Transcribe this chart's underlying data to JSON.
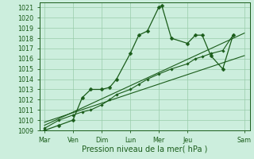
{
  "background_color": "#cceedd",
  "grid_color": "#99ccaa",
  "line_color": "#1a5c1a",
  "ylim": [
    1009,
    1021.5
  ],
  "ytick_min": 1009,
  "ytick_max": 1021,
  "xlabel": "Pression niveau de la mer( hPa )",
  "xlabel_fontsize": 7,
  "tick_fontsize": 5.8,
  "day_labels": [
    "Mar",
    "Ven",
    "Dim",
    "Lun",
    "Mer",
    "Jeu",
    "Sam"
  ],
  "day_positions": [
    0.0,
    0.83,
    1.67,
    2.5,
    3.33,
    4.17,
    5.83
  ],
  "xlim": [
    -0.15,
    6.0
  ],
  "series1_x": [
    0.0,
    0.42,
    0.83,
    1.1,
    1.35,
    1.67,
    1.9,
    2.1,
    2.5,
    2.75,
    3.0,
    3.33,
    3.42,
    3.7,
    4.17,
    4.4,
    4.6,
    4.85,
    5.2,
    5.5
  ],
  "series1_y": [
    1009.0,
    1009.5,
    1010.0,
    1012.2,
    1013.0,
    1013.0,
    1013.2,
    1014.0,
    1016.5,
    1018.3,
    1018.7,
    1021.0,
    1021.2,
    1018.0,
    1017.5,
    1018.3,
    1018.3,
    1016.3,
    1015.0,
    1018.3
  ],
  "series2_x": [
    0.0,
    0.42,
    0.83,
    1.1,
    1.35,
    1.67,
    1.9,
    2.1,
    2.5,
    2.75,
    3.0,
    3.33,
    3.7,
    4.17,
    4.4,
    4.6,
    4.85,
    5.2,
    5.5
  ],
  "series2_y": [
    1009.2,
    1010.0,
    1010.5,
    1010.8,
    1011.0,
    1011.5,
    1012.0,
    1012.5,
    1013.0,
    1013.5,
    1014.0,
    1014.5,
    1015.0,
    1015.5,
    1016.0,
    1016.2,
    1016.5,
    1016.8,
    1018.3
  ],
  "series3_x": [
    0.0,
    5.83
  ],
  "series3_y": [
    1009.5,
    1018.5
  ],
  "series4_x": [
    0.0,
    5.83
  ],
  "series4_y": [
    1009.8,
    1016.3
  ]
}
